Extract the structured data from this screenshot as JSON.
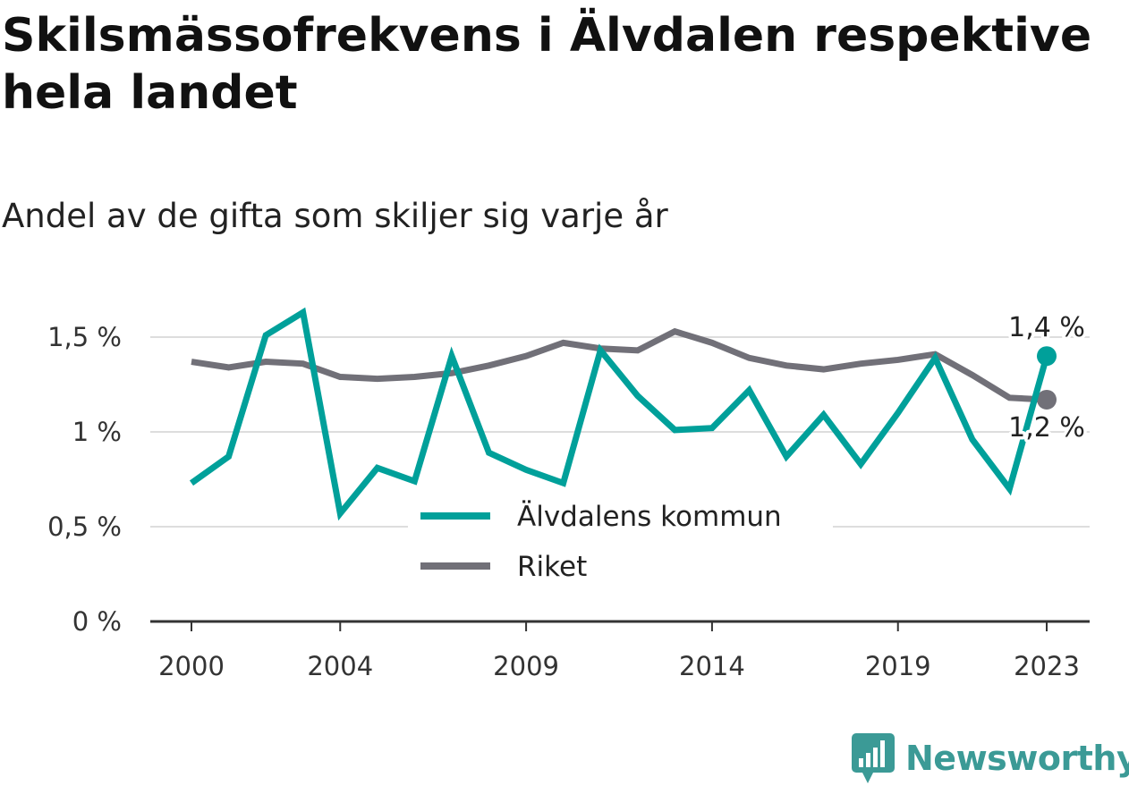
{
  "title": "Skilsmässofrekvens i Älvdalen respektive hela landet",
  "subtitle": "Andel av de gifta som skiljer sig varje år",
  "brand": {
    "name": "Newsworthy",
    "icon": "newsworthy-logo-icon"
  },
  "colors": {
    "alvdalen": "#00a09a",
    "riket": "#717078",
    "grid": "#dddddd",
    "axis": "#333333"
  },
  "chart_data": {
    "type": "line",
    "x": [
      2000,
      2001,
      2002,
      2003,
      2004,
      2005,
      2006,
      2007,
      2008,
      2009,
      2010,
      2011,
      2012,
      2013,
      2014,
      2015,
      2016,
      2017,
      2018,
      2019,
      2020,
      2021,
      2022,
      2023
    ],
    "series": [
      {
        "name": "Älvdalens kommun",
        "values": [
          0.73,
          0.87,
          1.51,
          1.63,
          0.57,
          0.81,
          0.74,
          1.4,
          0.89,
          0.8,
          0.73,
          1.43,
          1.19,
          1.01,
          1.02,
          1.22,
          0.87,
          1.09,
          0.83,
          1.1,
          1.39,
          0.96,
          0.7,
          1.4
        ]
      },
      {
        "name": "Riket",
        "values": [
          1.37,
          1.34,
          1.37,
          1.36,
          1.29,
          1.28,
          1.29,
          1.31,
          1.35,
          1.4,
          1.47,
          1.44,
          1.43,
          1.53,
          1.47,
          1.39,
          1.35,
          1.33,
          1.36,
          1.38,
          1.41,
          1.3,
          1.18,
          1.17
        ]
      }
    ],
    "ylim": [
      0,
      1.7
    ],
    "yticks": [
      0,
      0.5,
      1,
      1.5
    ],
    "ytick_labels": [
      "0 %",
      "0,5 %",
      "1 %",
      "1,5 %"
    ],
    "xticks": [
      2000,
      2004,
      2009,
      2014,
      2019,
      2023
    ],
    "xtick_labels": [
      "2000",
      "2004",
      "2009",
      "2014",
      "2019",
      "2023"
    ],
    "end_labels": [
      "1,4 %",
      "1,2 %"
    ],
    "grid": true,
    "legend": {
      "placement": "bottom-center",
      "entries": [
        "Älvdalens kommun",
        "Riket"
      ]
    }
  }
}
